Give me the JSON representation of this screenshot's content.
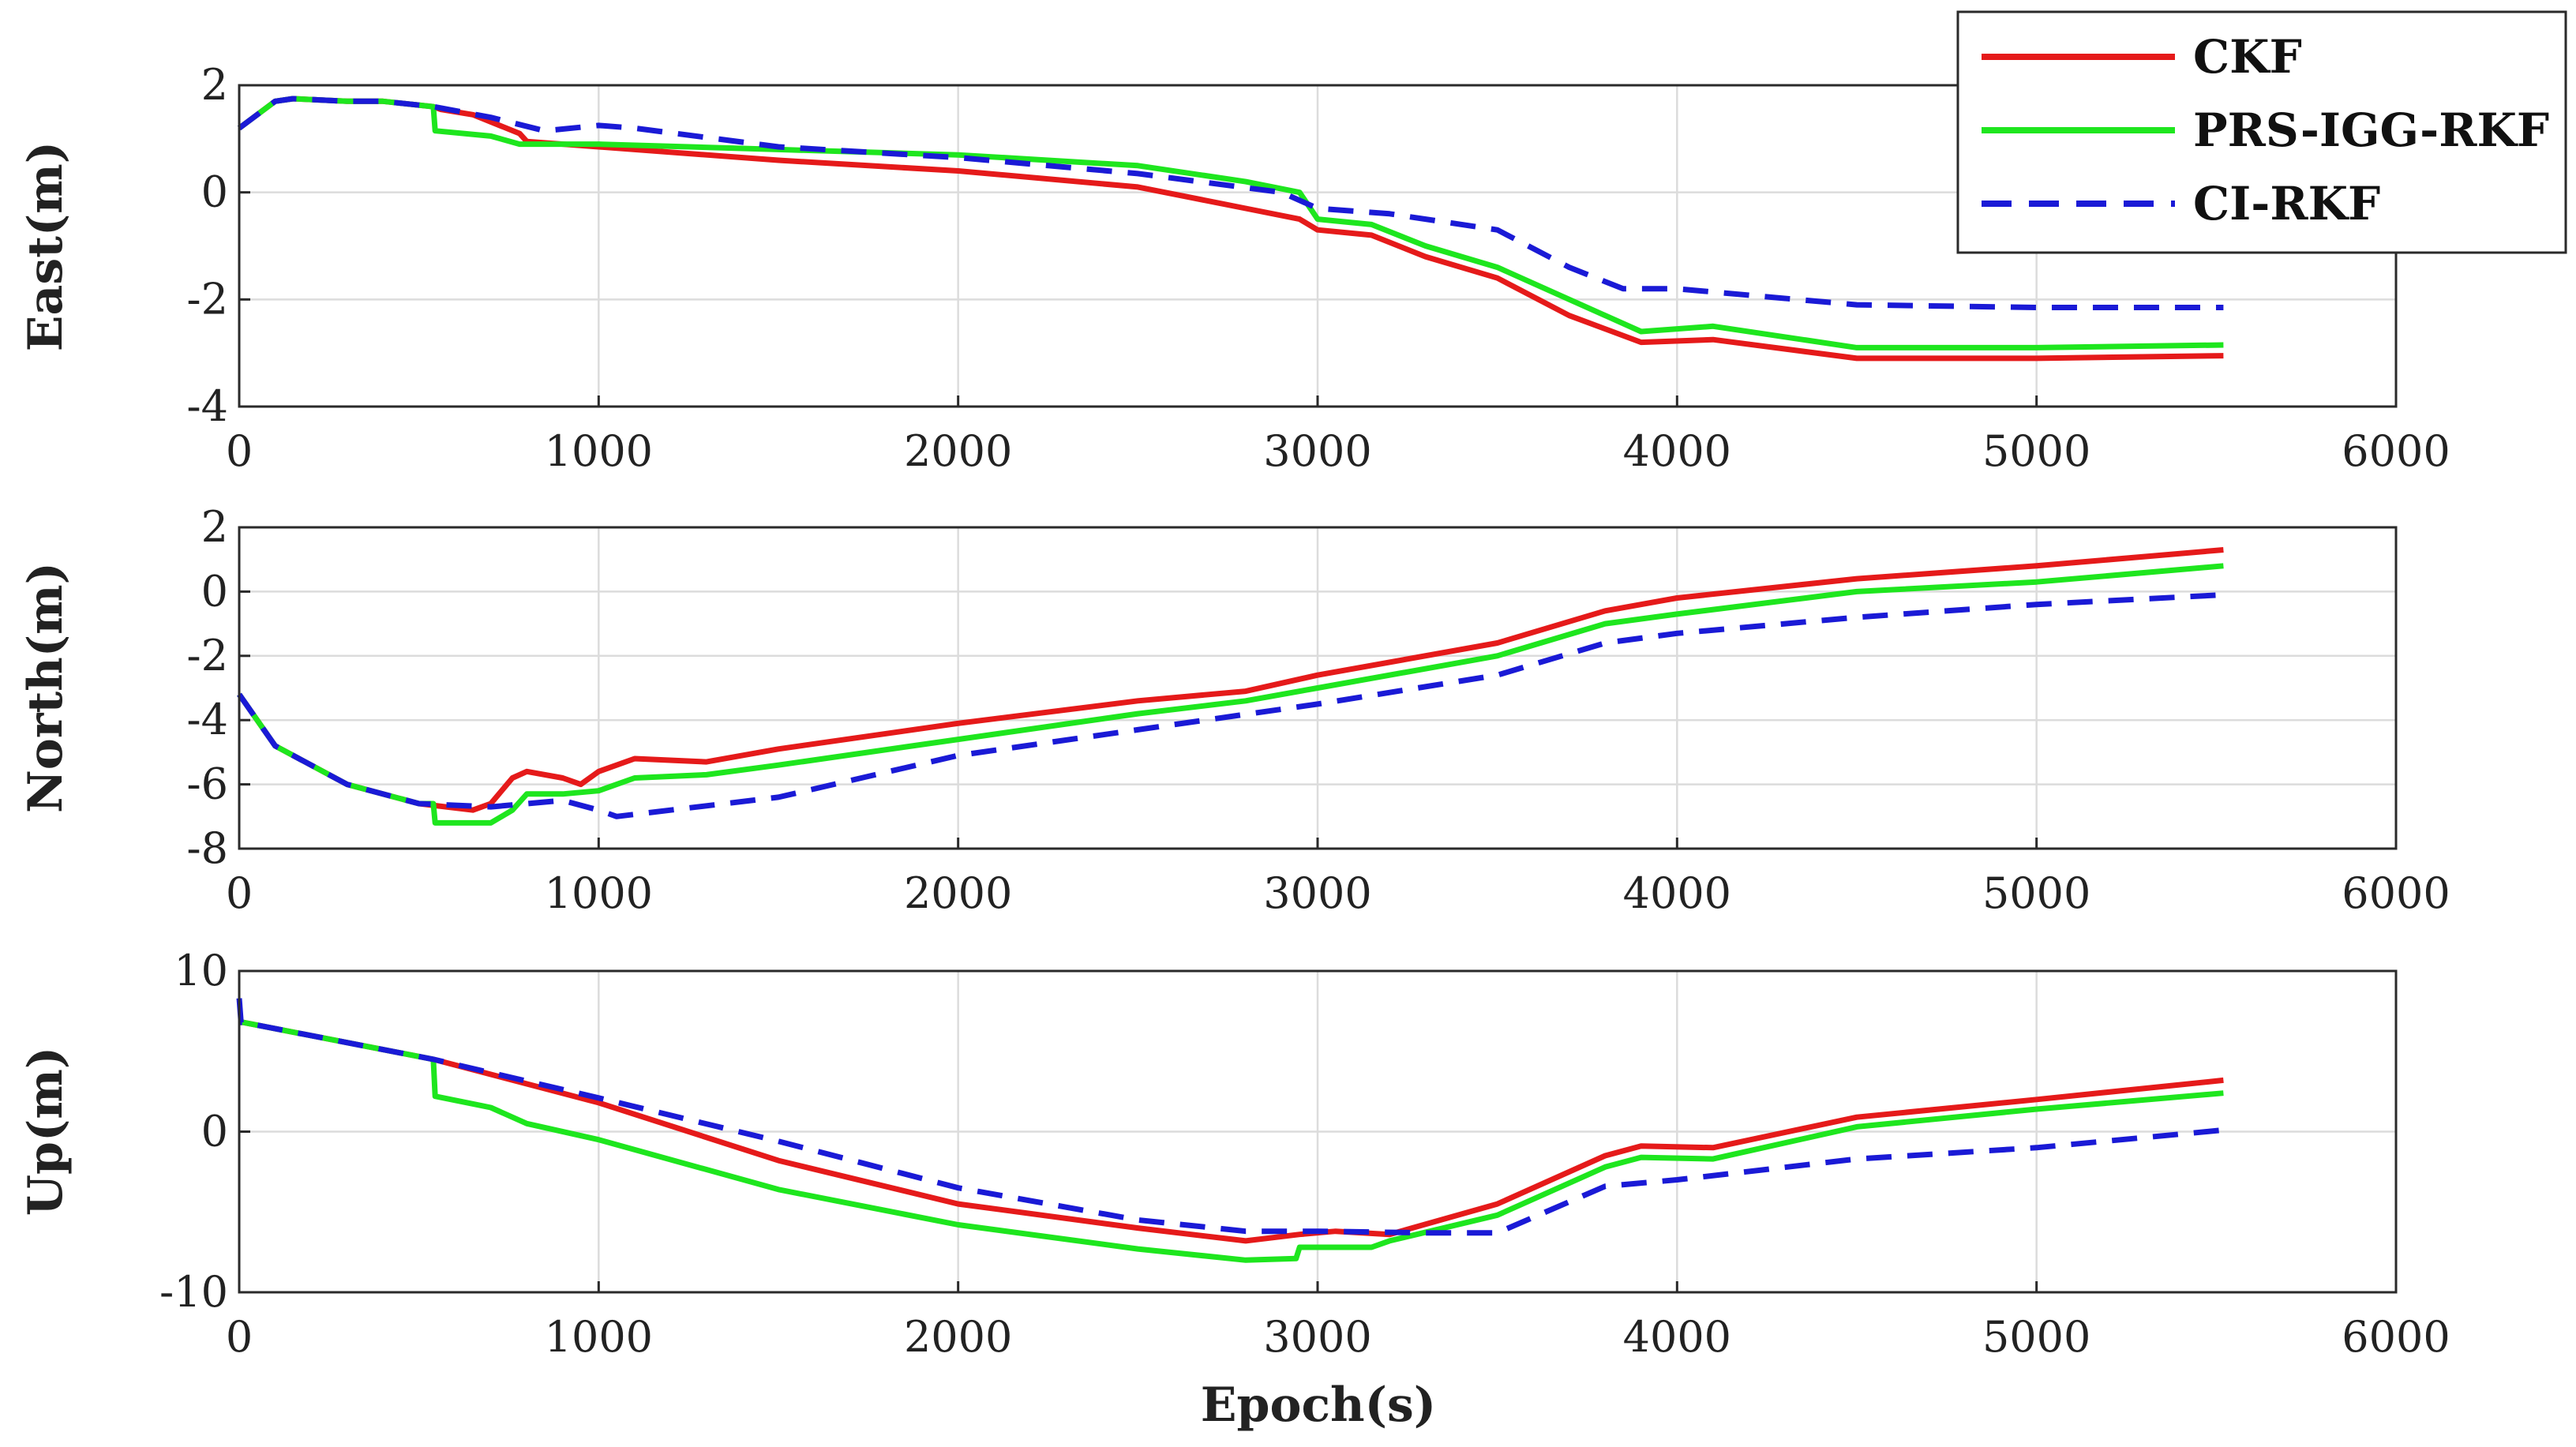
{
  "colors": {
    "CKF": "#e51a1a",
    "PRS-IGG-RKF": "#1ee61e",
    "CI-RKF": "#1a1ad6"
  },
  "legend": {
    "position": "top-right",
    "entries": [
      {
        "label": "CKF",
        "style": "solid"
      },
      {
        "label": "PRS-IGG-RKF",
        "style": "solid"
      },
      {
        "label": "CI-RKF",
        "style": "dashed"
      }
    ]
  },
  "xlabel": "Epoch(s)",
  "chart_data": [
    {
      "type": "line",
      "title": "",
      "ylabel": "East(m)",
      "xlabel": "",
      "xlim": [
        0,
        6000
      ],
      "ylim": [
        -4,
        2
      ],
      "xticks": [
        "0",
        "1000",
        "2000",
        "3000",
        "4000",
        "5000",
        "6000"
      ],
      "yticks": [
        "-4",
        "-2",
        "0",
        "2"
      ],
      "grid": true,
      "series": [
        {
          "name": "CKF",
          "x": [
            0,
            100,
            150,
            300,
            400,
            540,
            560,
            650,
            780,
            800,
            1000,
            1500,
            2000,
            2500,
            2800,
            2950,
            3000,
            3150,
            3300,
            3500,
            3700,
            3900,
            4100,
            4500,
            5000,
            5520
          ],
          "y": [
            1.2,
            1.7,
            1.75,
            1.7,
            1.7,
            1.6,
            1.55,
            1.45,
            1.1,
            0.95,
            0.85,
            0.6,
            0.4,
            0.1,
            -0.3,
            -0.5,
            -0.7,
            -0.8,
            -1.2,
            -1.6,
            -2.3,
            -2.8,
            -2.75,
            -3.1,
            -3.1,
            -3.05
          ]
        },
        {
          "name": "PRS-IGG-RKF",
          "x": [
            0,
            100,
            150,
            300,
            400,
            540,
            545,
            700,
            780,
            800,
            1000,
            1500,
            2000,
            2500,
            2800,
            2950,
            3000,
            3150,
            3300,
            3500,
            3700,
            3900,
            4100,
            4500,
            5000,
            5520
          ],
          "y": [
            1.2,
            1.7,
            1.75,
            1.7,
            1.7,
            1.6,
            1.15,
            1.05,
            0.9,
            0.9,
            0.9,
            0.8,
            0.7,
            0.5,
            0.2,
            0.0,
            -0.5,
            -0.6,
            -1.0,
            -1.4,
            -2.0,
            -2.6,
            -2.5,
            -2.9,
            -2.9,
            -2.85
          ]
        },
        {
          "name": "CI-RKF",
          "x": [
            0,
            100,
            150,
            300,
            400,
            540,
            700,
            850,
            1000,
            1100,
            1500,
            2000,
            2500,
            2900,
            3000,
            3200,
            3500,
            3700,
            3850,
            4000,
            4500,
            5000,
            5520
          ],
          "y": [
            1.2,
            1.7,
            1.75,
            1.7,
            1.7,
            1.6,
            1.4,
            1.15,
            1.25,
            1.2,
            0.85,
            0.65,
            0.35,
            0.0,
            -0.3,
            -0.4,
            -0.7,
            -1.4,
            -1.8,
            -1.8,
            -2.1,
            -2.15,
            -2.15
          ]
        }
      ]
    },
    {
      "type": "line",
      "title": "",
      "ylabel": "North(m)",
      "xlabel": "",
      "xlim": [
        0,
        6000
      ],
      "ylim": [
        -8,
        2
      ],
      "xticks": [
        "0",
        "1000",
        "2000",
        "3000",
        "4000",
        "5000",
        "6000"
      ],
      "yticks": [
        "-8",
        "-6",
        "-4",
        "-2",
        "0",
        "2"
      ],
      "grid": true,
      "series": [
        {
          "name": "CKF",
          "x": [
            0,
            100,
            300,
            500,
            650,
            700,
            760,
            800,
            900,
            950,
            1000,
            1100,
            1300,
            1500,
            2000,
            2500,
            2800,
            3000,
            3500,
            3800,
            4000,
            4500,
            5000,
            5520
          ],
          "y": [
            -3.2,
            -4.8,
            -6.0,
            -6.6,
            -6.8,
            -6.6,
            -5.8,
            -5.6,
            -5.8,
            -6.0,
            -5.6,
            -5.2,
            -5.3,
            -4.9,
            -4.1,
            -3.4,
            -3.1,
            -2.6,
            -1.6,
            -0.6,
            -0.2,
            0.4,
            0.8,
            1.3
          ]
        },
        {
          "name": "PRS-IGG-RKF",
          "x": [
            0,
            100,
            300,
            500,
            540,
            545,
            700,
            760,
            800,
            900,
            1000,
            1100,
            1300,
            1500,
            2000,
            2500,
            2800,
            3000,
            3500,
            3800,
            4000,
            4500,
            5000,
            5520
          ],
          "y": [
            -3.2,
            -4.8,
            -6.0,
            -6.6,
            -6.6,
            -7.2,
            -7.2,
            -6.8,
            -6.3,
            -6.3,
            -6.2,
            -5.8,
            -5.7,
            -5.4,
            -4.6,
            -3.8,
            -3.4,
            -3.0,
            -2.0,
            -1.0,
            -0.7,
            0.0,
            0.3,
            0.8
          ]
        },
        {
          "name": "CI-RKF",
          "x": [
            0,
            100,
            300,
            500,
            700,
            900,
            1000,
            1050,
            1200,
            1500,
            2000,
            2500,
            3000,
            3500,
            3800,
            4000,
            4500,
            5000,
            5520
          ],
          "y": [
            -3.2,
            -4.8,
            -6.0,
            -6.6,
            -6.7,
            -6.5,
            -6.8,
            -7.0,
            -6.8,
            -6.4,
            -5.1,
            -4.3,
            -3.5,
            -2.6,
            -1.6,
            -1.3,
            -0.8,
            -0.4,
            -0.1
          ]
        }
      ]
    },
    {
      "type": "line",
      "title": "",
      "ylabel": "Up(m)",
      "xlabel": "Epoch(s)",
      "xlim": [
        0,
        6000
      ],
      "ylim": [
        -10,
        10
      ],
      "xticks": [
        "0",
        "1000",
        "2000",
        "3000",
        "4000",
        "5000",
        "6000"
      ],
      "yticks": [
        "-10",
        "0",
        "10"
      ],
      "grid": true,
      "series": [
        {
          "name": "CKF",
          "x": [
            0,
            10,
            540,
            1000,
            1500,
            2000,
            2500,
            2800,
            2950,
            3050,
            3200,
            3500,
            3800,
            3900,
            4100,
            4500,
            5000,
            5520
          ],
          "y": [
            6.8,
            6.8,
            4.5,
            1.8,
            -1.8,
            -4.5,
            -6.0,
            -6.8,
            -6.4,
            -6.2,
            -6.4,
            -4.5,
            -1.5,
            -0.9,
            -1.0,
            0.9,
            2.0,
            3.2
          ]
        },
        {
          "name": "PRS-IGG-RKF",
          "x": [
            0,
            10,
            540,
            545,
            700,
            800,
            1000,
            1500,
            2000,
            2500,
            2800,
            2940,
            2950,
            3150,
            3200,
            3500,
            3800,
            3900,
            4100,
            4500,
            5000,
            5520
          ],
          "y": [
            6.8,
            6.8,
            4.5,
            2.2,
            1.5,
            0.5,
            -0.5,
            -3.6,
            -5.8,
            -7.3,
            -8.0,
            -7.9,
            -7.2,
            -7.2,
            -6.8,
            -5.2,
            -2.2,
            -1.6,
            -1.7,
            0.3,
            1.4,
            2.4
          ]
        },
        {
          "name": "CI-RKF",
          "x": [
            0,
            5,
            10,
            540,
            1000,
            1500,
            2000,
            2500,
            2800,
            3000,
            3300,
            3500,
            3800,
            4000,
            4500,
            5000,
            5520
          ],
          "y": [
            8.3,
            6.8,
            6.8,
            4.5,
            2.1,
            -0.6,
            -3.5,
            -5.5,
            -6.2,
            -6.2,
            -6.3,
            -6.3,
            -3.4,
            -3.0,
            -1.7,
            -1.0,
            0.1
          ]
        }
      ]
    }
  ]
}
